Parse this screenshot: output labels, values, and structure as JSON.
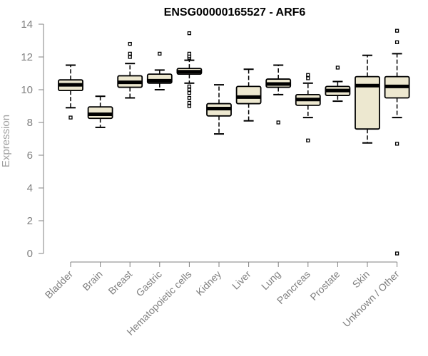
{
  "chart_data": {
    "type": "boxplot",
    "title": "ENSG00000165527 - ARF6",
    "ylabel": "Expression",
    "xlabel": "",
    "ylim": [
      0,
      14
    ],
    "yticks": [
      0,
      2,
      4,
      6,
      8,
      10,
      12,
      14
    ],
    "grid": false,
    "box_fill": "#ede8d0",
    "categories": [
      "Bladder",
      "Brain",
      "Breast",
      "Gastric",
      "Hematopoietic cells",
      "Kidney",
      "Liver",
      "Lung",
      "Pancreas",
      "Prostate",
      "Skin",
      "Unknown / Other"
    ],
    "boxes": [
      {
        "whisker_low": 8.9,
        "q1": 9.95,
        "median": 10.3,
        "q3": 10.6,
        "whisker_high": 11.5,
        "outliers": [
          8.3
        ]
      },
      {
        "whisker_low": 7.7,
        "q1": 8.25,
        "median": 8.5,
        "q3": 8.95,
        "whisker_high": 9.6,
        "outliers": []
      },
      {
        "whisker_low": 9.5,
        "q1": 10.15,
        "median": 10.45,
        "q3": 10.85,
        "whisker_high": 11.6,
        "outliers": [
          12.0,
          12.2,
          12.8
        ]
      },
      {
        "whisker_low": 10.0,
        "q1": 10.4,
        "median": 10.55,
        "q3": 10.95,
        "whisker_high": 11.2,
        "outliers": [
          12.2
        ]
      },
      {
        "whisker_low": 10.4,
        "q1": 10.95,
        "median": 11.1,
        "q3": 11.3,
        "whisker_high": 11.8,
        "outliers": [
          9.0,
          9.2,
          9.5,
          9.8,
          10.0,
          10.2,
          11.95,
          12.05,
          12.2,
          13.45
        ]
      },
      {
        "whisker_low": 7.3,
        "q1": 8.4,
        "median": 8.85,
        "q3": 9.15,
        "whisker_high": 10.3,
        "outliers": []
      },
      {
        "whisker_low": 8.1,
        "q1": 9.15,
        "median": 9.55,
        "q3": 10.2,
        "whisker_high": 11.25,
        "outliers": []
      },
      {
        "whisker_low": 9.7,
        "q1": 10.15,
        "median": 10.35,
        "q3": 10.65,
        "whisker_high": 11.5,
        "outliers": [
          8.0
        ]
      },
      {
        "whisker_low": 8.3,
        "q1": 9.05,
        "median": 9.4,
        "q3": 9.7,
        "whisker_high": 10.4,
        "outliers": [
          6.9,
          10.7,
          10.9
        ]
      },
      {
        "whisker_low": 9.3,
        "q1": 9.65,
        "median": 9.95,
        "q3": 10.2,
        "whisker_high": 10.5,
        "outliers": [
          11.35
        ]
      },
      {
        "whisker_low": 6.75,
        "q1": 7.6,
        "median": 10.25,
        "q3": 10.8,
        "whisker_high": 12.1,
        "outliers": []
      },
      {
        "whisker_low": 8.3,
        "q1": 9.5,
        "median": 10.2,
        "q3": 10.8,
        "whisker_high": 12.2,
        "outliers": [
          0.0,
          6.7,
          12.9,
          13.6
        ]
      }
    ]
  }
}
